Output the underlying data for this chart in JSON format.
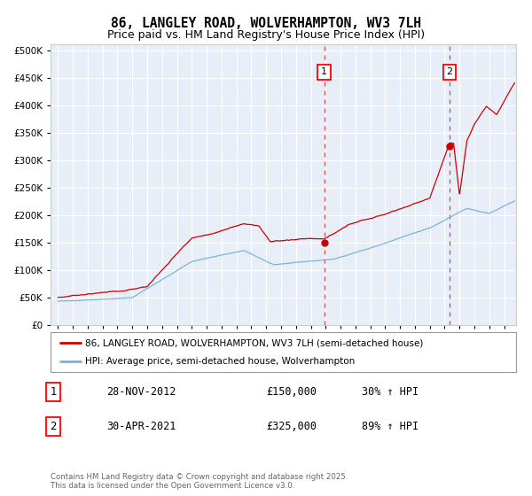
{
  "title": "86, LANGLEY ROAD, WOLVERHAMPTON, WV3 7LH",
  "subtitle": "Price paid vs. HM Land Registry's House Price Index (HPI)",
  "title_fontsize": 10.5,
  "subtitle_fontsize": 9,
  "background_color": "#ffffff",
  "plot_bg_color": "#e8eef8",
  "grid_color": "#ffffff",
  "legend_line1": "86, LANGLEY ROAD, WOLVERHAMPTON, WV3 7LH (semi-detached house)",
  "legend_line2": "HPI: Average price, semi-detached house, Wolverhampton",
  "red_line_color": "#cc0000",
  "blue_line_color": "#7ab3d9",
  "vline_color": "#dd4444",
  "marker1_date": 2012.91,
  "marker1_value": 150000,
  "marker2_date": 2021.33,
  "marker2_value": 325000,
  "footer_line1": "Contains HM Land Registry data © Crown copyright and database right 2025.",
  "footer_line2": "This data is licensed under the Open Government Licence v3.0.",
  "table_row1": [
    "1",
    "28-NOV-2012",
    "£150,000",
    "30% ↑ HPI"
  ],
  "table_row2": [
    "2",
    "30-APR-2021",
    "£325,000",
    "89% ↑ HPI"
  ],
  "ylim": [
    0,
    510000
  ],
  "yticks": [
    0,
    50000,
    100000,
    150000,
    200000,
    250000,
    300000,
    350000,
    400000,
    450000,
    500000
  ],
  "xlim": [
    1994.5,
    2025.8
  ],
  "xticks": [
    1995,
    1996,
    1997,
    1998,
    1999,
    2000,
    2001,
    2002,
    2003,
    2004,
    2005,
    2006,
    2007,
    2008,
    2009,
    2010,
    2011,
    2012,
    2013,
    2014,
    2015,
    2016,
    2017,
    2018,
    2019,
    2020,
    2021,
    2022,
    2023,
    2024,
    2025
  ]
}
